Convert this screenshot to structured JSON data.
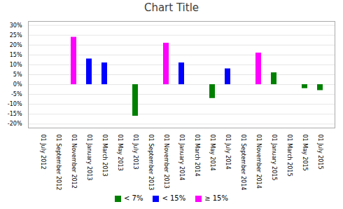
{
  "chart_data": {
    "type": "bar",
    "title": "Chart Title",
    "categories": [
      "01 July 2012",
      "01 September 2012",
      "01 November 2012",
      "01 January 2013",
      "01 March 2013",
      "01 May 2013",
      "01 July 2013",
      "01 September 2013",
      "01 November 2013",
      "01 January 2014",
      "01 March 2014",
      "01 May 2014",
      "01 July 2014",
      "01 September 2014",
      "01 November 2014",
      "01 January 2015",
      "01 March 2015",
      "01 May 2015",
      "01 July 2015"
    ],
    "series": [
      {
        "name": "< 7%",
        "color": "#008000",
        "values": [
          null,
          null,
          null,
          null,
          null,
          null,
          -16,
          null,
          null,
          null,
          null,
          -7,
          null,
          null,
          null,
          6,
          null,
          -2,
          -3
        ]
      },
      {
        "name": "< 15%",
        "color": "#0000FF",
        "values": [
          null,
          null,
          null,
          13,
          11,
          null,
          null,
          null,
          null,
          11,
          null,
          null,
          8,
          null,
          null,
          null,
          null,
          null,
          null
        ]
      },
      {
        "name": "≥ 15%",
        "color": "#FF00FF",
        "values": [
          null,
          null,
          24,
          null,
          null,
          null,
          null,
          null,
          21,
          null,
          null,
          null,
          null,
          null,
          16,
          null,
          null,
          null,
          null
        ]
      }
    ],
    "ylim": [
      -22,
      32
    ],
    "yticks": [
      {
        "value": -20,
        "label": "-20%"
      },
      {
        "value": -15,
        "label": "-15%"
      },
      {
        "value": -10,
        "label": "-10%"
      },
      {
        "value": -5,
        "label": "-5%"
      },
      {
        "value": 0,
        "label": "0%"
      },
      {
        "value": 5,
        "label": "5%"
      },
      {
        "value": 10,
        "label": "10%"
      },
      {
        "value": 15,
        "label": "15%"
      },
      {
        "value": 20,
        "label": "20%"
      },
      {
        "value": 25,
        "label": "25%"
      },
      {
        "value": 30,
        "label": "30%"
      }
    ],
    "grid": true,
    "legend": "bottom"
  }
}
